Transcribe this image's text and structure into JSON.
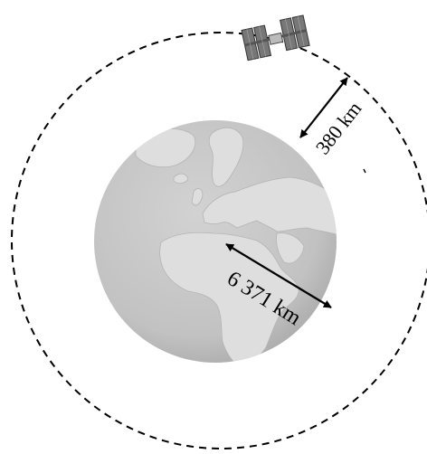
{
  "diagram": {
    "earth_radius_label": "6 371 km",
    "orbit_altitude_label": "380 km"
  },
  "icons": {
    "planet": "earth-globe-icon",
    "satellite": "space-station-icon"
  },
  "colors": {
    "ocean": "#c6c6c6",
    "land": "#dedede",
    "ink": "#000000",
    "orbit": "#000000"
  }
}
